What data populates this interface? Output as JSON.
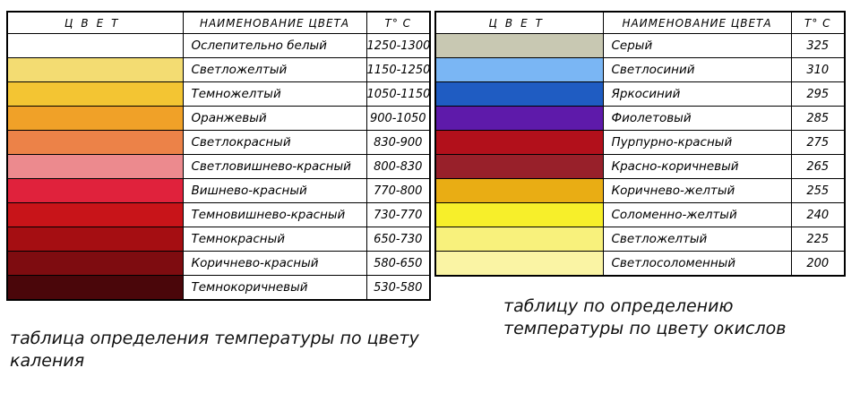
{
  "heat_table": {
    "headers": {
      "color": "ЦВЕТ",
      "name": "НАИМЕНОВАНИЕ ЦВЕТА",
      "temp": "t° C"
    },
    "rows": [
      {
        "swatch": "#ffffff",
        "name": "Ослепительно белый",
        "temp": "1250-1300"
      },
      {
        "swatch": "#f3dc72",
        "name": "Светложелтый",
        "temp": "1150-1250"
      },
      {
        "swatch": "#f3c533",
        "name": "Темножелтый",
        "temp": "1050-1150"
      },
      {
        "swatch": "#f0a128",
        "name": "Оранжевый",
        "temp": "900-1050"
      },
      {
        "swatch": "#ec8248",
        "name": "Светлокрасный",
        "temp": "830-900"
      },
      {
        "swatch": "#ec8a8e",
        "name": "Светловишнево-красный",
        "temp": "800-830"
      },
      {
        "swatch": "#e0223c",
        "name": "Вишнево-красный",
        "temp": "770-800"
      },
      {
        "swatch": "#c81419",
        "name": "Темновишнево-красный",
        "temp": "730-770"
      },
      {
        "swatch": "#a50e12",
        "name": "Темнокрасный",
        "temp": "650-730"
      },
      {
        "swatch": "#7e0c10",
        "name": "Коричнево-красный",
        "temp": "580-650"
      },
      {
        "swatch": "#4a060a",
        "name": "Темнокоричневый",
        "temp": "530-580"
      }
    ],
    "caption": "таблица определения температуры по цвету каления"
  },
  "oxide_table": {
    "headers": {
      "color": "ЦВЕТ",
      "name": "НАИМЕНОВАНИЕ ЦВЕТА",
      "temp": "t° C"
    },
    "rows": [
      {
        "swatch": "#c8c8b2",
        "name": "Серый",
        "temp": "325"
      },
      {
        "swatch": "#7ab6f4",
        "name": "Светлосиний",
        "temp": "310"
      },
      {
        "swatch": "#1f5cc2",
        "name": "Яркосиний",
        "temp": "295"
      },
      {
        "swatch": "#5e1aaa",
        "name": "Фиолетовый",
        "temp": "285"
      },
      {
        "swatch": "#b2101b",
        "name": "Пурпурно-красный",
        "temp": "275"
      },
      {
        "swatch": "#98202a",
        "name": "Красно-коричневый",
        "temp": "265"
      },
      {
        "swatch": "#e9ad14",
        "name": "Коричнево-желтый",
        "temp": "255"
      },
      {
        "swatch": "#f7ef2a",
        "name": "Соломенно-желтый",
        "temp": "240"
      },
      {
        "swatch": "#f8f17c",
        "name": "Светложелтый",
        "temp": "225"
      },
      {
        "swatch": "#faf4a4",
        "name": "Светлосоломенный",
        "temp": "200"
      }
    ],
    "caption": "таблицу по определению температуры по цвету окислов"
  }
}
